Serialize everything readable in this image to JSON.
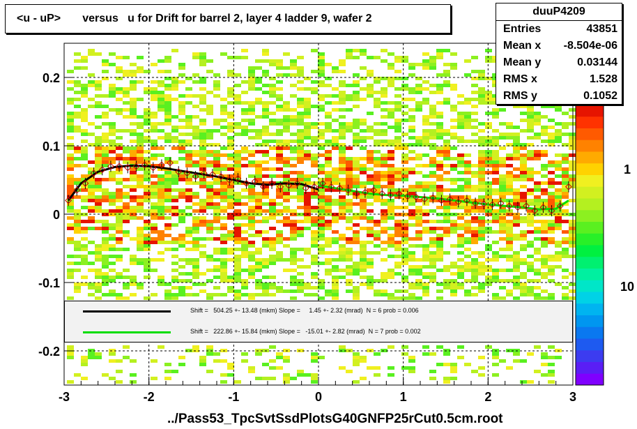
{
  "title": "<u - uP>       versus   u for Drift for barrel 2, layer 4 ladder 9, wafer 2",
  "filename": "../Pass53_TpcSvtSsdPlotsG40GNFP25rCut0.5cm.root",
  "stats": {
    "name": "duuP4209",
    "rows": [
      {
        "key": "Entries",
        "value": "43851"
      },
      {
        "key": "Mean x",
        "value": "-8.504e-06"
      },
      {
        "key": "Mean y",
        "value": "0.03144"
      },
      {
        "key": "RMS x",
        "value": "1.528"
      },
      {
        "key": "RMS y",
        "value": "0.1052"
      }
    ]
  },
  "fits": [
    {
      "color": "#000000",
      "text": "Shift =   504.25 +- 13.48 (mkm) Slope =     1.45 +- 2.32 (mrad)  N = 6 prob = 0.006"
    },
    {
      "color": "#00dd00",
      "text": "Shift =   222.86 +- 15.84 (mkm) Slope =   -15.01 +- 2.82 (mrad)  N = 7 prob = 0.002"
    }
  ],
  "colors": {
    "palette": [
      "#7f00ff",
      "#5a1ef5",
      "#3c3cf0",
      "#1e5af0",
      "#0a78f0",
      "#0096f0",
      "#00b4f0",
      "#00d2e6",
      "#00e6c8",
      "#00f0a0",
      "#00f070",
      "#00f040",
      "#28f028",
      "#5af020",
      "#8cf020",
      "#b4f020",
      "#d2f020",
      "#f0f020",
      "#ffd200",
      "#ffaa00",
      "#ff8200",
      "#ff5a00",
      "#ff3200",
      "#e61400"
    ],
    "profile_marker": "#cc0000",
    "background_low": "#b4f020",
    "background_high": "#ff5a00"
  },
  "chart_data": {
    "type": "heatmap",
    "title": "<u - uP>       versus   u for Drift for barrel 2, layer 4 ladder 9, wafer 2",
    "xlim": [
      -3,
      3
    ],
    "ylim": [
      -0.25,
      0.25
    ],
    "x_ticks": [
      "-3",
      "-2",
      "-1",
      "0",
      "1",
      "2",
      "3"
    ],
    "y_ticks": [
      "-0.2",
      "-0.1",
      "0",
      "0.1",
      "0.2"
    ],
    "x_tick_values": [
      -3,
      -2,
      -1,
      0,
      1,
      2,
      3
    ],
    "y_tick_values": [
      -0.2,
      -0.1,
      0,
      0.1,
      0.2
    ],
    "colorbar_labels": [
      "1",
      "10"
    ],
    "colorbar_label_values": [
      1,
      10
    ],
    "grid": true,
    "legend": "fit box inside plot, lower middle",
    "profile": {
      "x": [
        -2.95,
        -2.85,
        -2.75,
        -2.65,
        -2.55,
        -2.45,
        -2.35,
        -2.25,
        -2.15,
        -2.05,
        -1.95,
        -1.85,
        -1.75,
        -1.65,
        -1.55,
        -1.45,
        -1.35,
        -1.25,
        -1.15,
        -1.05,
        -0.95,
        -0.85,
        -0.75,
        -0.65,
        -0.55,
        -0.45,
        -0.35,
        -0.25,
        -0.15,
        -0.05,
        0.05,
        0.15,
        0.25,
        0.35,
        0.45,
        0.55,
        0.65,
        0.75,
        0.85,
        0.95,
        1.05,
        1.15,
        1.25,
        1.35,
        1.45,
        1.55,
        1.65,
        1.75,
        1.85,
        1.95,
        2.05,
        2.15,
        2.25,
        2.35,
        2.45,
        2.55,
        2.65,
        2.75,
        2.85,
        2.95
      ],
      "y": [
        0.02,
        0.035,
        0.045,
        0.06,
        0.065,
        0.07,
        0.07,
        0.068,
        0.07,
        0.072,
        0.068,
        0.072,
        0.075,
        0.062,
        0.06,
        0.055,
        0.06,
        0.058,
        0.055,
        0.05,
        0.052,
        0.045,
        0.048,
        0.04,
        0.045,
        0.04,
        0.042,
        0.045,
        0.038,
        0.04,
        0.045,
        0.04,
        0.038,
        0.035,
        0.03,
        0.032,
        0.035,
        0.03,
        0.028,
        0.03,
        0.026,
        0.025,
        0.022,
        0.024,
        0.02,
        0.022,
        0.018,
        0.02,
        0.016,
        0.015,
        0.014,
        0.016,
        0.012,
        0.01,
        0.012,
        0.005,
        0.01,
        0.005,
        0.012,
        0.04
      ]
    },
    "fit_black": {
      "x": [
        -2.95,
        -2.8,
        -2.6,
        -2.4,
        -2.2,
        -2.0,
        -1.8,
        -1.6,
        -1.4,
        -1.2,
        -1.0,
        -0.8,
        -0.6,
        -0.4,
        -0.2,
        0.0
      ],
      "y": [
        0.02,
        0.045,
        0.062,
        0.069,
        0.071,
        0.07,
        0.067,
        0.063,
        0.059,
        0.055,
        0.05,
        0.045,
        0.043,
        0.045,
        0.044,
        0.036
      ]
    },
    "fit_green": {
      "x": [
        0.0,
        0.2,
        0.4,
        0.6,
        0.8,
        1.0,
        1.2,
        1.4,
        1.6,
        1.8,
        2.0,
        2.2,
        2.4,
        2.6,
        2.8,
        2.95
      ],
      "y": [
        0.042,
        0.038,
        0.034,
        0.03,
        0.028,
        0.027,
        0.025,
        0.023,
        0.02,
        0.017,
        0.014,
        0.012,
        0.01,
        0.007,
        0.008,
        0.02
      ]
    }
  }
}
